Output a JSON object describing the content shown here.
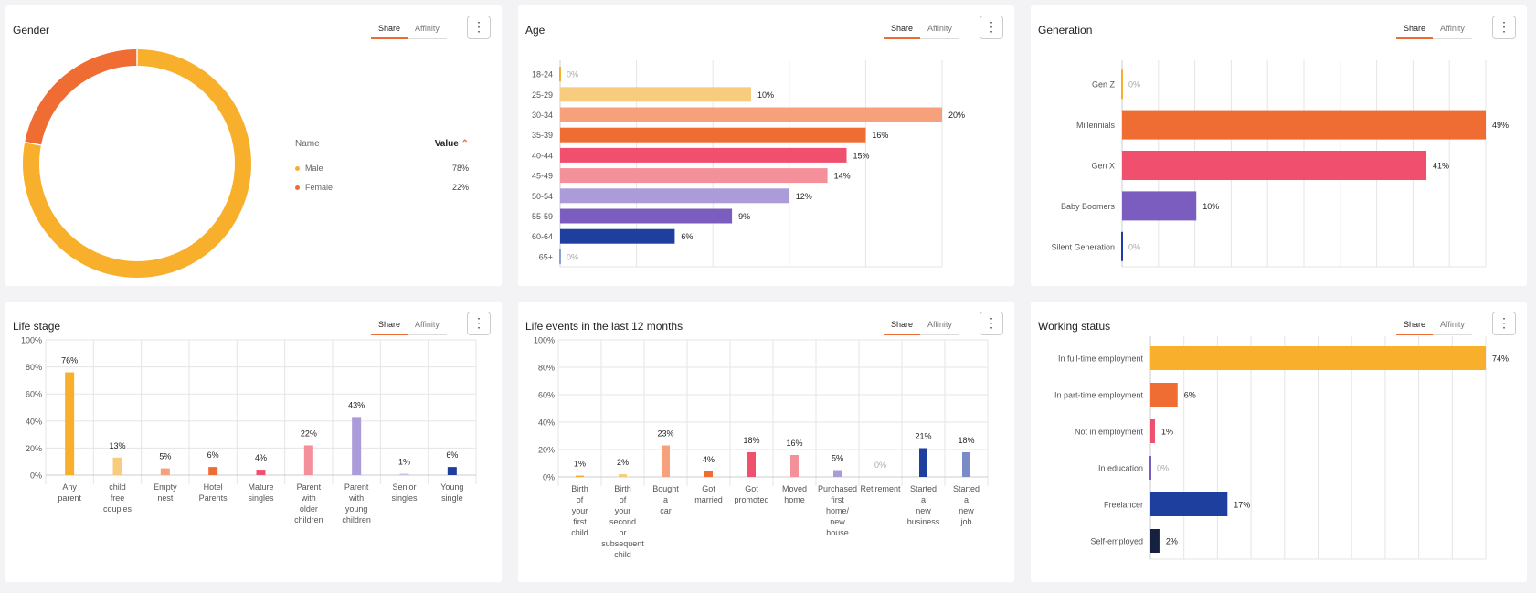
{
  "tabs": {
    "share": "Share",
    "affinity": "Affinity"
  },
  "colors": {
    "accent": "#ee6b35",
    "yellow": "#f8b02c",
    "orange": "#ef6c33",
    "pink": "#f0506e",
    "purple": "#7b5cbf",
    "blue": "#1f3f9f"
  },
  "chart_data": [
    {
      "id": "gender",
      "type": "pie",
      "title": "Gender",
      "legend_header": {
        "name": "Name",
        "value": "Value"
      },
      "categories": [
        "Male",
        "Female"
      ],
      "values": [
        78,
        22
      ],
      "labels": [
        "78%",
        "22%"
      ],
      "colors": [
        "#f8b02c",
        "#ef6c33"
      ]
    },
    {
      "id": "age",
      "type": "bar",
      "orientation": "horizontal",
      "title": "Age",
      "categories": [
        "18-24",
        "25-29",
        "30-34",
        "35-39",
        "40-44",
        "45-49",
        "50-54",
        "55-59",
        "60-64",
        "65+"
      ],
      "values": [
        0,
        10,
        20,
        16,
        15,
        14,
        12,
        9,
        6,
        0
      ],
      "labels": [
        "0%",
        "10%",
        "20%",
        "16%",
        "15%",
        "14%",
        "12%",
        "9%",
        "6%",
        "0%"
      ],
      "colors": [
        "#f8b02c",
        "#f8cc7e",
        "#f6a07c",
        "#ef6c33",
        "#f0506e",
        "#f4909a",
        "#ab9bd8",
        "#7b5cbf",
        "#1f3f9f",
        "#8da0d6"
      ],
      "xlim": [
        0,
        20
      ]
    },
    {
      "id": "generation",
      "type": "bar",
      "orientation": "horizontal",
      "title": "Generation",
      "categories": [
        "Gen Z",
        "Millennials",
        "Gen X",
        "Baby Boomers",
        "Silent Generation"
      ],
      "values": [
        0,
        49,
        41,
        10,
        0
      ],
      "labels": [
        "0%",
        "49%",
        "41%",
        "10%",
        "0%"
      ],
      "colors": [
        "#f8b02c",
        "#ef6c33",
        "#f0506e",
        "#7b5cbf",
        "#1f3f9f"
      ],
      "xlim": [
        0,
        49
      ]
    },
    {
      "id": "lifestage",
      "type": "bar",
      "orientation": "vertical",
      "title": "Life stage",
      "categories": [
        [
          "Any",
          "parent"
        ],
        [
          "child",
          "free",
          "couples"
        ],
        [
          "Empty",
          "nest"
        ],
        [
          "Hotel",
          "Parents"
        ],
        [
          "Mature",
          "singles"
        ],
        [
          "Parent",
          "with",
          "older",
          "children"
        ],
        [
          "Parent",
          "with",
          "young",
          "children"
        ],
        [
          "Senior",
          "singles"
        ],
        [
          "Young",
          "single"
        ]
      ],
      "values": [
        76,
        13,
        5,
        6,
        4,
        22,
        43,
        1,
        6
      ],
      "labels": [
        "76%",
        "13%",
        "5%",
        "6%",
        "4%",
        "22%",
        "43%",
        "1%",
        "6%"
      ],
      "colors": [
        "#f8b02c",
        "#f8cc7e",
        "#f6a07c",
        "#ef6c33",
        "#f0506e",
        "#f4909a",
        "#ab9bd8",
        "#c9c3e6",
        "#1f3f9f"
      ],
      "yticks": [
        "0%",
        "20%",
        "40%",
        "60%",
        "80%",
        "100%"
      ],
      "ylim": [
        0,
        100
      ]
    },
    {
      "id": "lifeevents",
      "type": "bar",
      "orientation": "vertical",
      "title": "Life events in the last 12 months",
      "categories": [
        [
          "Birth",
          "of",
          "your",
          "first",
          "child"
        ],
        [
          "Birth",
          "of",
          "your",
          "second",
          "or",
          "subsequent",
          "child"
        ],
        [
          "Bought",
          "a",
          "car"
        ],
        [
          "Got",
          "married"
        ],
        [
          "Got",
          "promoted"
        ],
        [
          "Moved",
          "home"
        ],
        [
          "Purchased",
          "first",
          "home/",
          "new",
          "house"
        ],
        [
          "Retirement"
        ],
        [
          "Started",
          "a",
          "new",
          "business"
        ],
        [
          "Started",
          "a",
          "new",
          "job"
        ]
      ],
      "values": [
        1,
        2,
        23,
        4,
        18,
        16,
        5,
        0,
        21,
        18
      ],
      "labels": [
        "1%",
        "2%",
        "23%",
        "4%",
        "18%",
        "16%",
        "5%",
        "0%",
        "21%",
        "18%"
      ],
      "colors": [
        "#f8b02c",
        "#f8cc7e",
        "#f6a07c",
        "#ef6c33",
        "#f0506e",
        "#f4909a",
        "#ab9bd8",
        "#7b5cbf",
        "#1f3f9f",
        "#7a8cc8"
      ],
      "yticks": [
        "0%",
        "20%",
        "40%",
        "60%",
        "80%",
        "100%"
      ],
      "ylim": [
        0,
        100
      ]
    },
    {
      "id": "working",
      "type": "bar",
      "orientation": "horizontal",
      "title": "Working status",
      "categories": [
        "In full-time employment",
        "In part-time employment",
        "Not in employment",
        "In education",
        "Freelancer",
        "Self-employed"
      ],
      "values": [
        74,
        6,
        1,
        0,
        17,
        2
      ],
      "labels": [
        "74%",
        "6%",
        "1%",
        "0%",
        "17%",
        "2%"
      ],
      "colors": [
        "#f8b02c",
        "#ef6c33",
        "#f0506e",
        "#7b5cbf",
        "#1f3f9f",
        "#15213f"
      ],
      "xlim": [
        0,
        74
      ]
    }
  ]
}
